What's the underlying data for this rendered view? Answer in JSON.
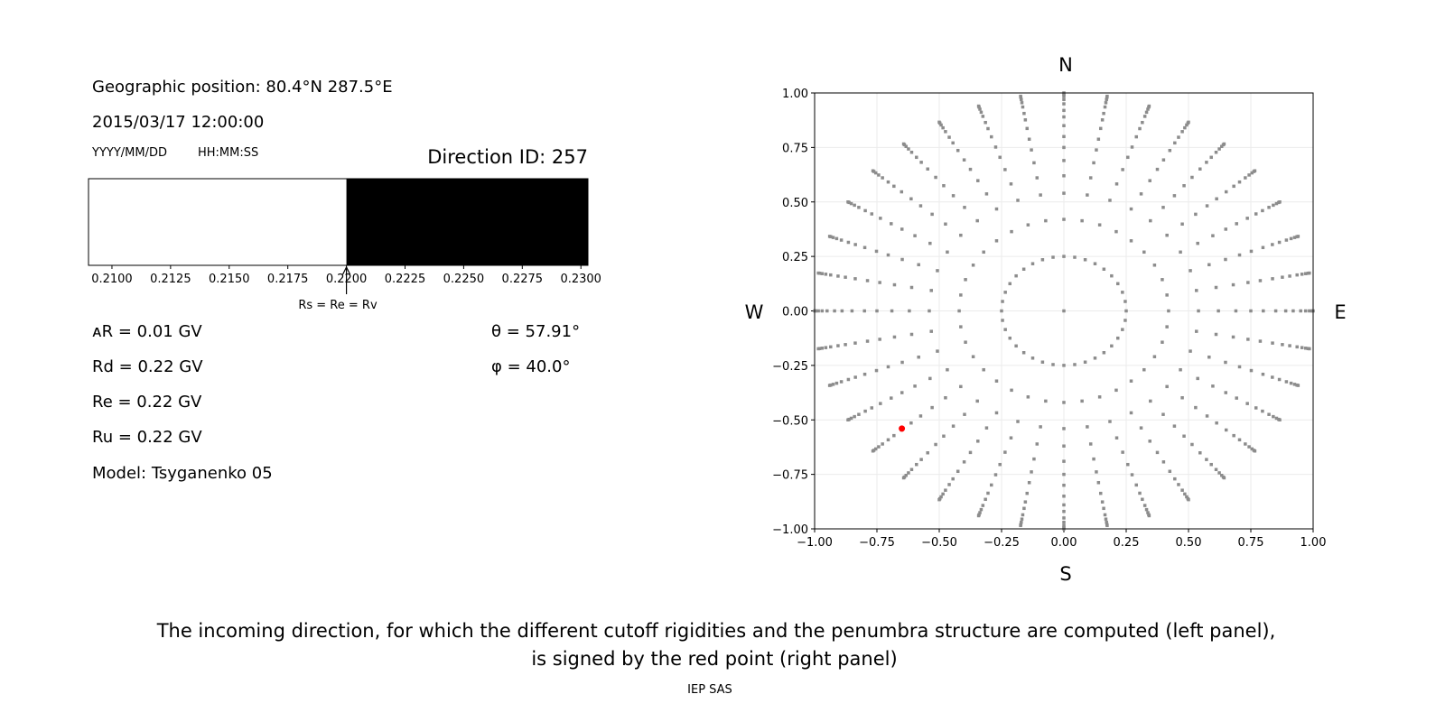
{
  "left_panel": {
    "geo_position": "Geographic position: 80.4°N 287.5°E",
    "datetime": "2015/03/17 12:00:00",
    "date_format": "YYYY/MM/DD",
    "time_format": "HH:MM:SS",
    "direction_id": "Direction ID: 257",
    "delta_r": "ᴀR = 0.01 GV",
    "rd": "Rd = 0.22 GV",
    "re": "Re = 0.22 GV",
    "ru": "Ru = 0.22 GV",
    "model": "Model: Tsyganenko 05",
    "theta": "θ = 57.91°",
    "phi": "φ = 40.0°",
    "arrow_label": "Rs = Re = Rv"
  },
  "chart_data": [
    {
      "type": "bar",
      "title": "",
      "xlim": [
        0.209,
        0.2303
      ],
      "xticks": [
        "0.2100",
        "0.2125",
        "0.2150",
        "0.2175",
        "0.2200",
        "0.2225",
        "0.2250",
        "0.2275",
        "0.2300"
      ],
      "segments": [
        {
          "from": 0.209,
          "to": 0.22,
          "color": "#ffffff",
          "state": "allowed"
        },
        {
          "from": 0.22,
          "to": 0.2303,
          "color": "#000000",
          "state": "forbidden"
        }
      ],
      "arrow_at": 0.22
    },
    {
      "type": "scatter",
      "xlim": [
        -1,
        1
      ],
      "ylim": [
        -1,
        1
      ],
      "xticks": [
        "−1.00",
        "−0.75",
        "−0.50",
        "−0.25",
        "0.00",
        "0.25",
        "0.50",
        "0.75",
        "1.00"
      ],
      "yticks": [
        "1.00",
        "0.75",
        "0.50",
        "0.25",
        "0.00",
        "−0.25",
        "−0.50",
        "−0.75",
        "−1.00"
      ],
      "grid": true,
      "point_color": "#8c8c8c",
      "center_point": [
        0,
        0
      ],
      "rings": [
        {
          "r": 0.25,
          "n": 36
        },
        {
          "r": 0.42,
          "n": 36
        },
        {
          "r": 0.54,
          "n": 36
        },
        {
          "r": 0.62,
          "n": 36
        },
        {
          "r": 0.69,
          "n": 36
        },
        {
          "r": 0.75,
          "n": 36
        },
        {
          "r": 0.8,
          "n": 36
        },
        {
          "r": 0.85,
          "n": 36
        },
        {
          "r": 0.89,
          "n": 36
        },
        {
          "r": 0.92,
          "n": 36
        },
        {
          "r": 0.95,
          "n": 36
        },
        {
          "r": 0.97,
          "n": 36
        },
        {
          "r": 0.985,
          "n": 36
        },
        {
          "r": 0.995,
          "n": 36
        },
        {
          "r": 1.0,
          "n": 36
        }
      ],
      "selected_point": {
        "x": -0.65,
        "y": -0.54,
        "color": "#ff0000"
      },
      "compass": {
        "n": "N",
        "s": "S",
        "e": "E",
        "w": "W"
      }
    }
  ],
  "caption": {
    "line1": "The incoming direction, for which the different cutoff rigidities and the penumbra structure are computed (left panel),",
    "line2": "is signed by the red point (right panel)",
    "credit": "IEP SAS"
  }
}
